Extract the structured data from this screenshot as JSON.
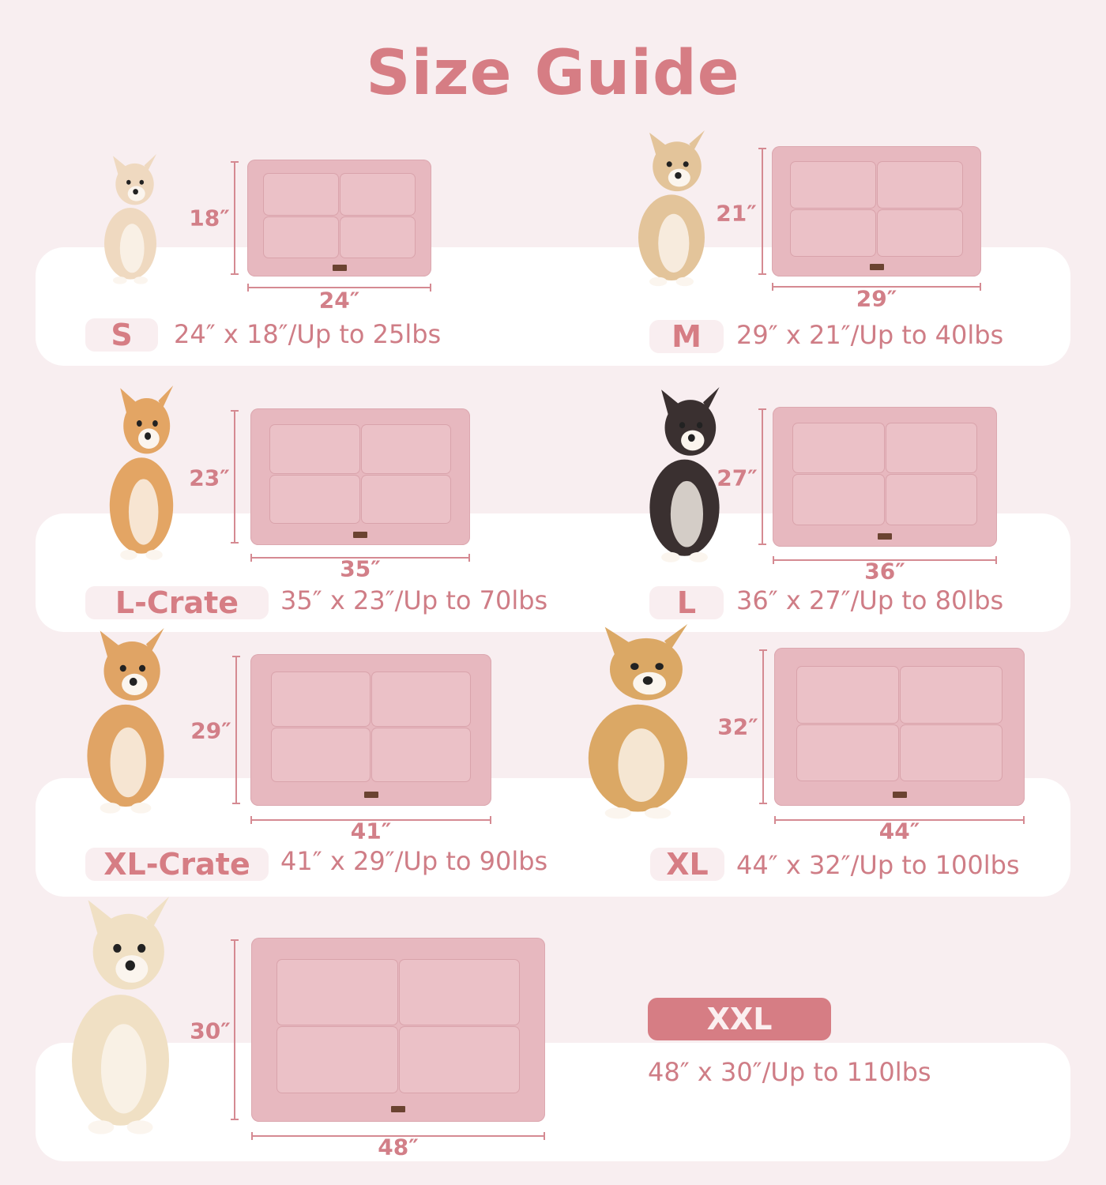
{
  "title": "Size Guide",
  "colors": {
    "accent": "#d67d84",
    "background": "#f8eef0",
    "mat": "#e7b8bf"
  },
  "sizes": [
    {
      "label": "S",
      "width": "24″",
      "height": "18″",
      "spec": "24″ x 18″/Up to 25lbs",
      "dog": "chihuahua-puppy"
    },
    {
      "label": "M",
      "width": "29″",
      "height": "21″",
      "spec": "29″ x 21″/Up to 40lbs",
      "dog": "fluffy-puppy"
    },
    {
      "label": "L-Crate",
      "width": "35″",
      "height": "23″",
      "spec": "35″ x 23″/Up to 70lbs",
      "dog": "corgi"
    },
    {
      "label": "L",
      "width": "36″",
      "height": "27″",
      "spec": "36″ x 27″/Up to 80lbs",
      "dog": "border-collie"
    },
    {
      "label": "XL-Crate",
      "width": "41″",
      "height": "29″",
      "spec": "41″ x 29″/Up to 90lbs",
      "dog": "shiba-inu"
    },
    {
      "label": "XL",
      "width": "44″",
      "height": "32″",
      "spec": "44″ x 32″/Up to 100lbs",
      "dog": "golden-retriever"
    },
    {
      "label": "XXL",
      "width": "48″",
      "height": "30″",
      "spec": "48″ x 30″/Up to 110lbs",
      "dog": "labrador-retriever"
    }
  ]
}
